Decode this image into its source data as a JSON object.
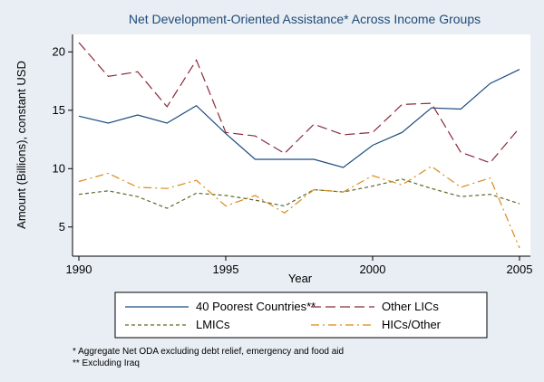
{
  "chart_data": {
    "type": "line",
    "title": "Net Development-Oriented Assistance* Across Income Groups",
    "xlabel": "Year",
    "ylabel": "Amount (Billions), constant USD",
    "xlim": [
      1990,
      2005
    ],
    "ylim": [
      2.5,
      21.5
    ],
    "x_ticks": [
      1990,
      1995,
      2000,
      2005
    ],
    "y_ticks": [
      5,
      10,
      15,
      20
    ],
    "grid": false,
    "legend_position": "bottom",
    "x": [
      1990,
      1991,
      1992,
      1993,
      1994,
      1995,
      1996,
      1997,
      1998,
      1999,
      2000,
      2001,
      2002,
      2003,
      2004,
      2005
    ],
    "series": [
      {
        "name": "40 Poorest Countries**",
        "color": "#1b4b7e",
        "dash": "solid",
        "values": [
          14.5,
          13.9,
          14.6,
          13.9,
          15.4,
          13.0,
          10.8,
          10.8,
          10.8,
          10.1,
          12.0,
          13.1,
          15.2,
          15.1,
          17.3,
          18.5
        ]
      },
      {
        "name": "Other LICs",
        "color": "#8c2a3a",
        "dash": "longdash",
        "values": [
          20.8,
          17.9,
          18.3,
          15.3,
          19.3,
          13.1,
          12.8,
          11.3,
          13.8,
          12.9,
          13.1,
          15.5,
          15.6,
          11.4,
          10.5,
          13.5
        ]
      },
      {
        "name": "LMICs",
        "color": "#5a6b2a",
        "dash": "dash",
        "values": [
          7.8,
          8.1,
          7.6,
          6.6,
          7.9,
          7.7,
          7.3,
          6.8,
          8.2,
          8.0,
          8.5,
          9.1,
          8.3,
          7.6,
          7.8,
          7.0
        ]
      },
      {
        "name": "HICs/Other",
        "color": "#d98a1a",
        "dash": "dashdot",
        "values": [
          8.9,
          9.6,
          8.4,
          8.3,
          9.0,
          6.8,
          7.7,
          6.2,
          8.2,
          8.0,
          9.4,
          8.6,
          10.2,
          8.4,
          9.2,
          3.2
        ]
      }
    ],
    "notes": [
      "* Aggregate Net ODA excluding debt relief, emergency and food aid",
      "** Excluding Iraq"
    ]
  }
}
